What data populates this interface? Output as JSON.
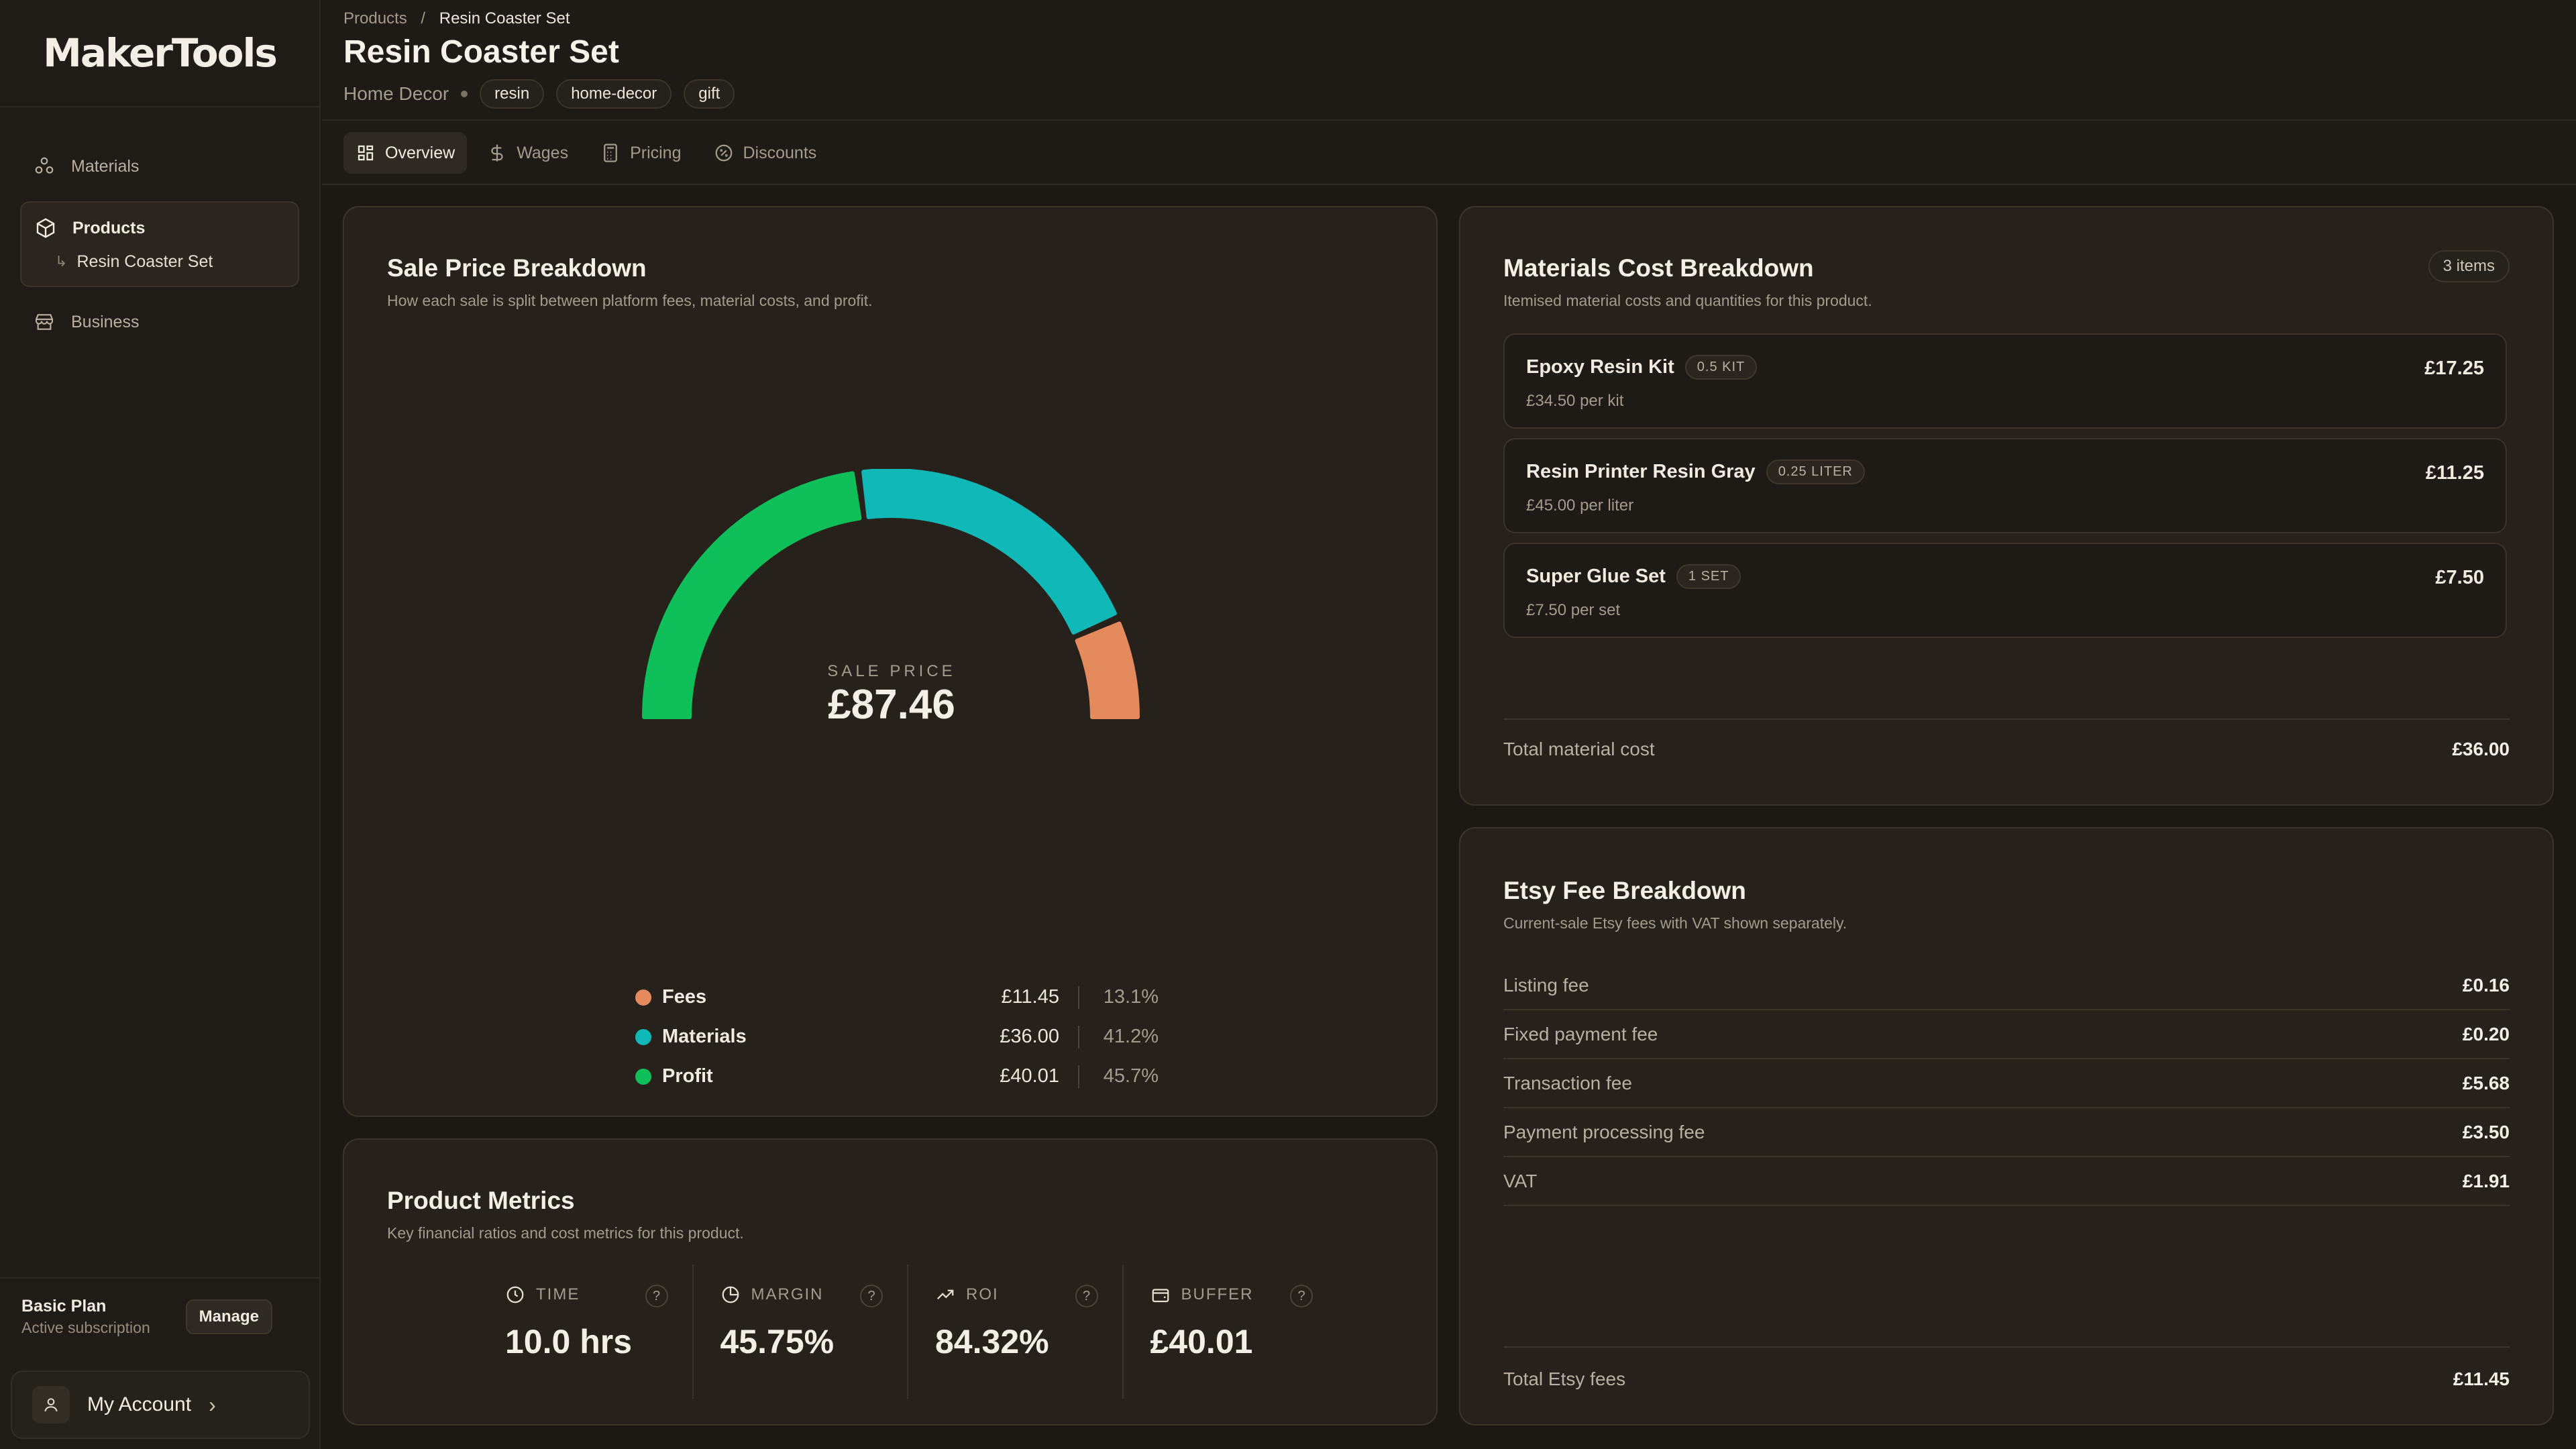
{
  "app": {
    "logo_text": "MakerTools"
  },
  "sidebar": {
    "items": [
      {
        "label": "Materials",
        "icon": "materials-icon"
      },
      {
        "label": "Products",
        "icon": "cube-icon"
      },
      {
        "label": "Business",
        "icon": "store-icon"
      }
    ],
    "sub_item": {
      "label": "Resin Coaster Set",
      "arrow": "↳"
    },
    "plan": {
      "title": "Basic Plan",
      "subtitle": "Active subscription",
      "manage_label": "Manage"
    },
    "account": {
      "label": "My Account",
      "chevron": "›"
    }
  },
  "header": {
    "breadcrumb": {
      "parent": "Products",
      "separator": "/",
      "current": "Resin Coaster Set"
    },
    "title": "Resin Coaster Set",
    "category": "Home Decor",
    "tags": [
      "resin",
      "home-decor",
      "gift"
    ]
  },
  "tabs": [
    {
      "label": "Overview",
      "icon": "grid-icon",
      "active": true
    },
    {
      "label": "Wages",
      "icon": "dollar-icon",
      "active": false
    },
    {
      "label": "Pricing",
      "icon": "calculator-icon",
      "active": false
    },
    {
      "label": "Discounts",
      "icon": "badge-percent-icon",
      "active": false
    }
  ],
  "sale_breakdown": {
    "title": "Sale Price Breakdown",
    "subtitle": "How each sale is split between platform fees, material costs, and profit.",
    "center_label": "SALE PRICE",
    "center_value": "£87.46",
    "legend": [
      {
        "name": "Fees",
        "value": "£11.45",
        "pct": "13.1%",
        "color": "#e48a5c"
      },
      {
        "name": "Materials",
        "value": "£36.00",
        "pct": "41.2%",
        "color": "#10b8b8"
      },
      {
        "name": "Profit",
        "value": "£40.01",
        "pct": "45.7%",
        "color": "#0fbf5a"
      }
    ]
  },
  "chart_data": {
    "type": "pie",
    "style": "half-donut",
    "categories": [
      "Profit",
      "Materials",
      "Fees"
    ],
    "values": [
      40.01,
      36.0,
      11.45
    ],
    "percentages": [
      45.7,
      41.2,
      13.1
    ],
    "colors": [
      "#0fbf5a",
      "#10b8b8",
      "#e48a5c"
    ],
    "total": 87.46
  },
  "metrics": {
    "title": "Product Metrics",
    "subtitle": "Key financial ratios and cost metrics for this product.",
    "items": [
      {
        "label": "TIME",
        "value": "10.0 hrs",
        "icon": "clock-icon"
      },
      {
        "label": "MARGIN",
        "value": "45.75%",
        "icon": "pie-icon"
      },
      {
        "label": "ROI",
        "value": "84.32%",
        "icon": "trending-up-icon"
      },
      {
        "label": "BUFFER",
        "value": "£40.01",
        "icon": "wallet-icon"
      }
    ],
    "help_glyph": "?"
  },
  "materials": {
    "title": "Materials Cost Breakdown",
    "subtitle": "Itemised material costs and quantities for this product.",
    "badge": "3 items",
    "items": [
      {
        "name": "Epoxy Resin Kit",
        "qty": "0.5 KIT",
        "per": "£34.50 per kit",
        "price": "£17.25"
      },
      {
        "name": "Resin Printer Resin Gray",
        "qty": "0.25 LITER",
        "per": "£45.00 per liter",
        "price": "£11.25"
      },
      {
        "name": "Super Glue Set",
        "qty": "1 SET",
        "per": "£7.50 per set",
        "price": "£7.50"
      }
    ],
    "total_label": "Total material cost",
    "total_value": "£36.00"
  },
  "etsy": {
    "title": "Etsy Fee Breakdown",
    "subtitle": "Current-sale Etsy fees with VAT shown separately.",
    "rows": [
      {
        "label": "Listing fee",
        "value": "£0.16"
      },
      {
        "label": "Fixed payment fee",
        "value": "£0.20"
      },
      {
        "label": "Transaction fee",
        "value": "£5.68"
      },
      {
        "label": "Payment processing fee",
        "value": "£3.50"
      },
      {
        "label": "VAT",
        "value": "£1.91"
      }
    ],
    "total_label": "Total Etsy fees",
    "total_value": "£11.45"
  }
}
